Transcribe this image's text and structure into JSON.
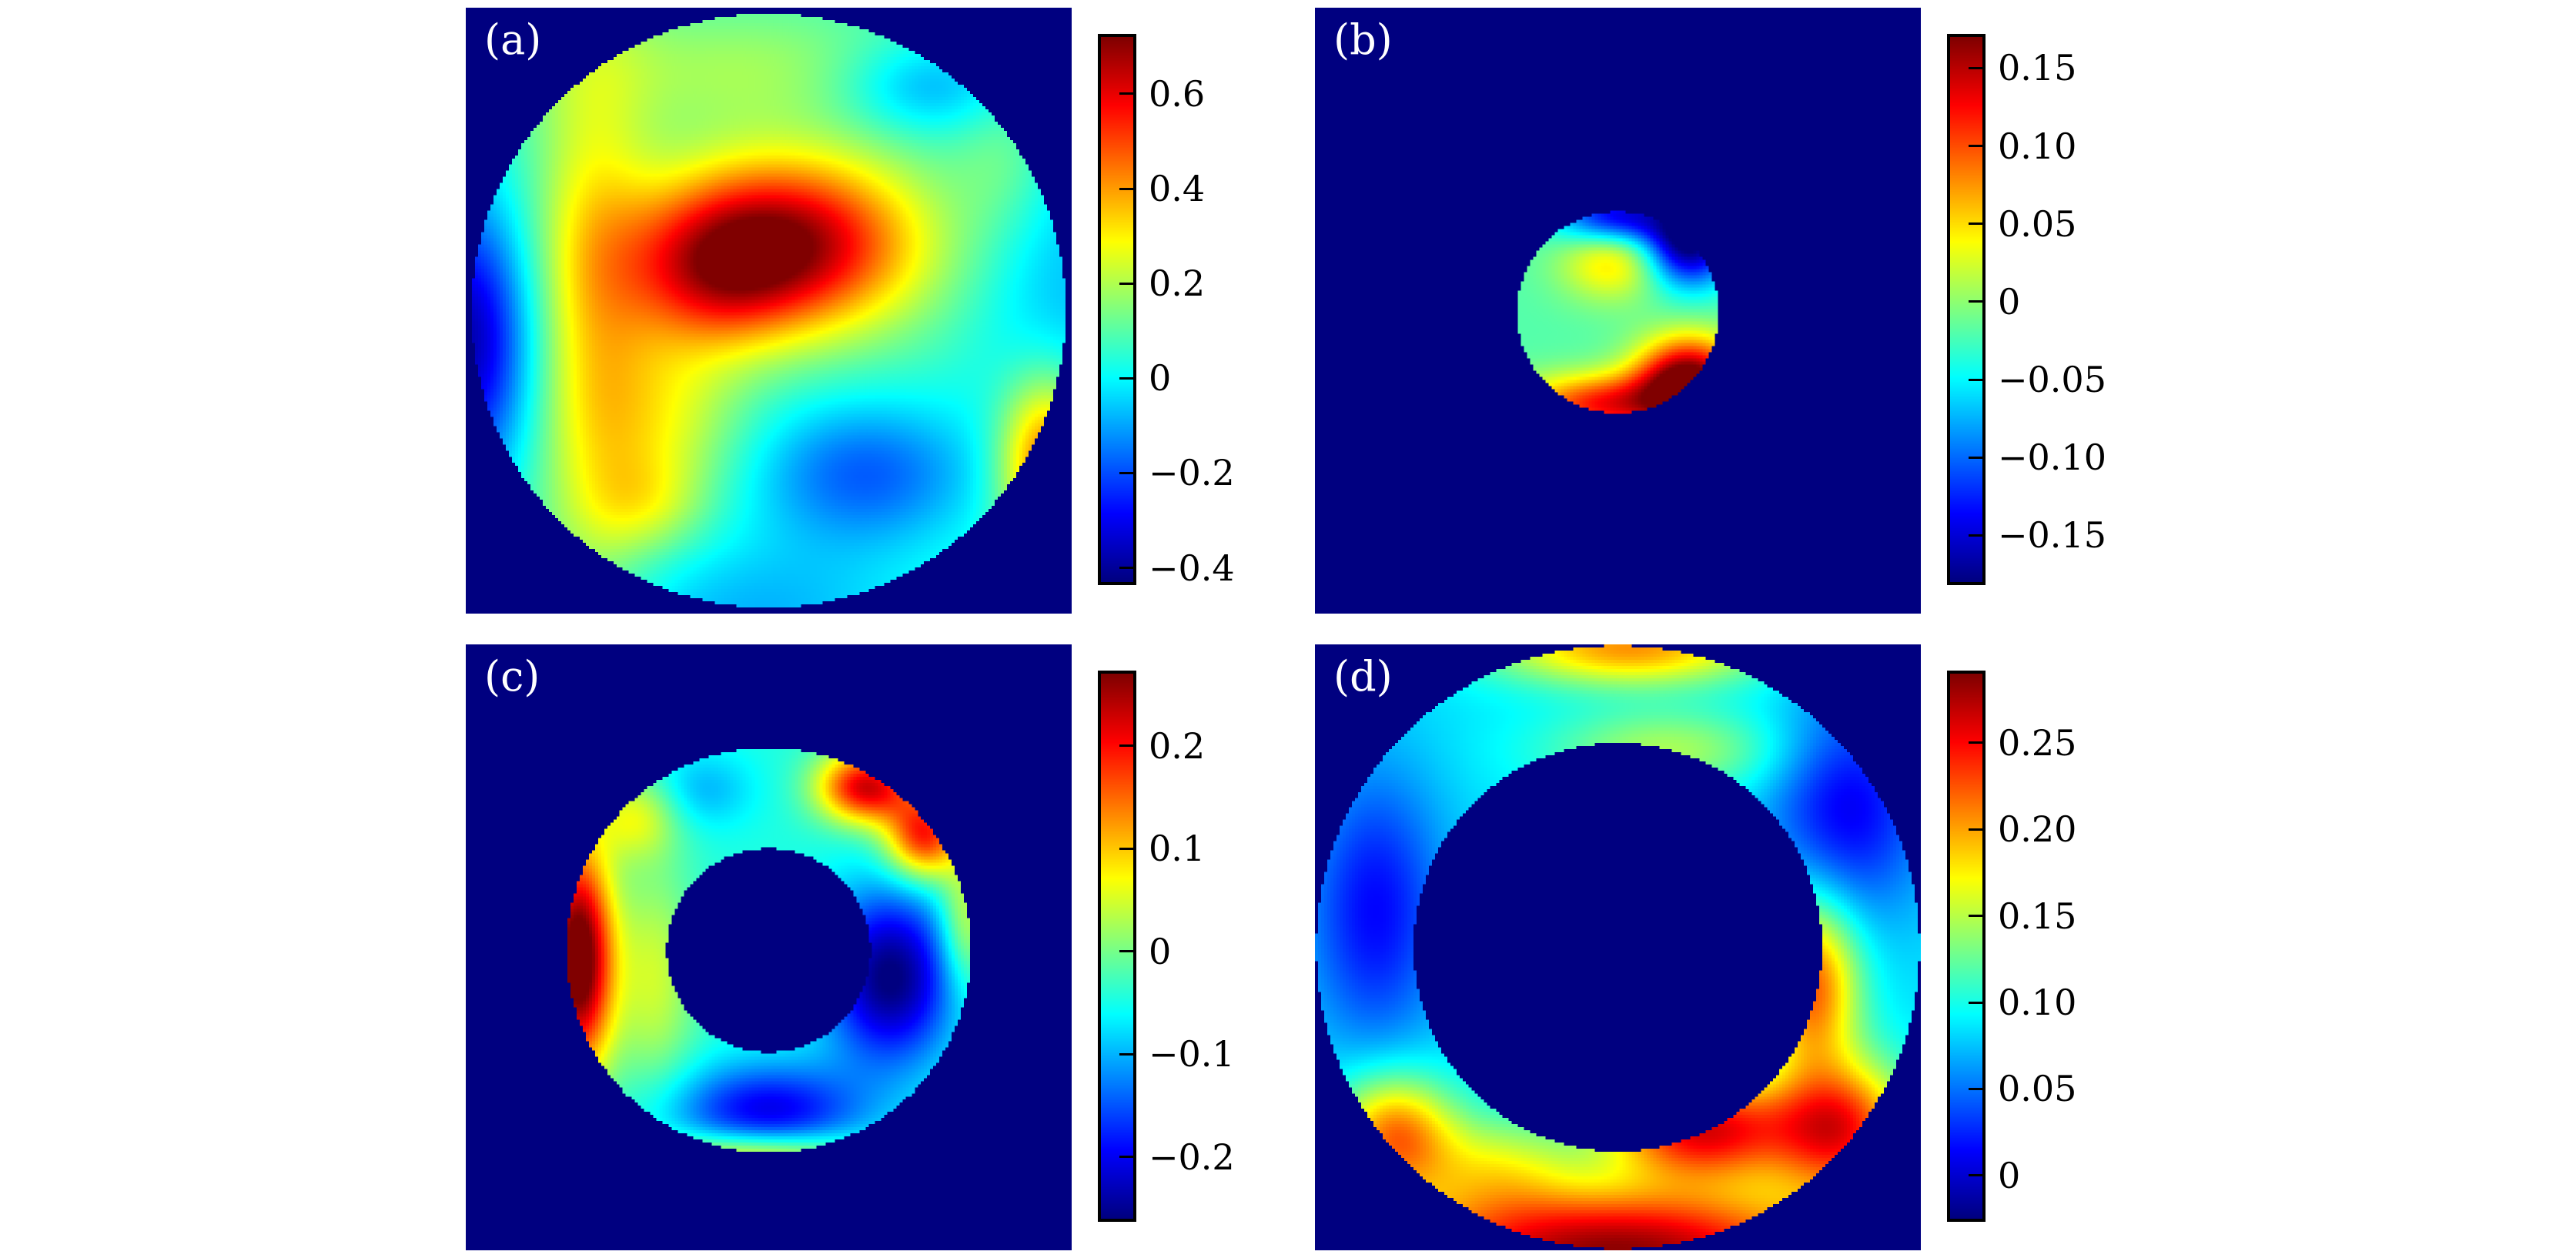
{
  "figure": {
    "background_color": "#ffffff",
    "data_background_color": "#00007f",
    "grid": {
      "rows": 2,
      "cols": 2
    },
    "blob_format": "[u, v, sigma_u, sigma_v, amplitude] in panel-fraction coordinates"
  },
  "chart_data": {
    "type": "heatmap",
    "colormap": "jet",
    "legend_position": "right-colorbar-per-panel",
    "panels": [
      {
        "id": "a",
        "label": "(a)",
        "shape": "disk",
        "mask": {
          "cx": 0.5,
          "cy": 0.5,
          "r_outer": 0.49,
          "r_inner": 0
        },
        "value_range": {
          "vmin": -0.43,
          "vmax": 0.72
        },
        "colorbar_ticks": [
          {
            "value": 0.6,
            "label": "0.6"
          },
          {
            "value": 0.4,
            "label": "0.4"
          },
          {
            "value": 0.2,
            "label": "0.2"
          },
          {
            "value": 0,
            "label": "0"
          },
          {
            "value": -0.2,
            "label": "−0.2"
          },
          {
            "value": -0.4,
            "label": "−0.4"
          }
        ],
        "field": {
          "base": 0.06,
          "gaussian_blobs": [
            [
              0.525,
              0.39,
              0.155,
              0.1,
              0.64
            ],
            [
              0.4,
              0.445,
              0.1,
              0.085,
              0.26
            ],
            [
              0.21,
              0.5,
              0.07,
              0.33,
              0.24
            ],
            [
              0.33,
              0.67,
              0.09,
              0.1,
              0.18
            ],
            [
              0.3,
              0.82,
              0.07,
              0.06,
              0.14
            ],
            [
              0.45,
              0.1,
              0.22,
              0.075,
              0.12
            ],
            [
              0.96,
              0.75,
              0.055,
              0.1,
              0.46
            ],
            [
              0.89,
              0.25,
              0.06,
              0.09,
              0.09
            ],
            [
              0.0,
              0.55,
              0.075,
              0.16,
              -0.44
            ],
            [
              0.66,
              0.77,
              0.13,
              0.085,
              -0.24
            ],
            [
              0.76,
              0.13,
              0.1,
              0.055,
              -0.17
            ],
            [
              0.99,
              0.48,
              0.1,
              0.22,
              -0.13
            ],
            [
              0.48,
              1.0,
              0.18,
              0.09,
              -0.14
            ]
          ]
        }
      },
      {
        "id": "b",
        "label": "(b)",
        "shape": "disk",
        "mask": {
          "cx": 0.5,
          "cy": 0.503,
          "r_outer": 0.166,
          "r_inner": 0
        },
        "value_range": {
          "vmin": -0.18,
          "vmax": 0.17
        },
        "colorbar_ticks": [
          {
            "value": 0.15,
            "label": "0.15"
          },
          {
            "value": 0.1,
            "label": "0.10"
          },
          {
            "value": 0.05,
            "label": "0.05"
          },
          {
            "value": 0,
            "label": "0"
          },
          {
            "value": -0.05,
            "label": "−0.05"
          },
          {
            "value": -0.1,
            "label": "−0.10"
          },
          {
            "value": -0.15,
            "label": "−0.15"
          }
        ],
        "field": {
          "base": -0.02,
          "gaussian_blobs": [
            [
              0.5,
              0.345,
              0.07,
              0.032,
              -0.13
            ],
            [
              0.617,
              0.387,
              0.05,
              0.05,
              -0.17
            ],
            [
              0.617,
              0.617,
              0.06,
              0.05,
              0.21
            ],
            [
              0.48,
              0.655,
              0.1,
              0.035,
              0.14
            ],
            [
              0.49,
              0.42,
              0.06,
              0.045,
              0.07
            ]
          ]
        }
      },
      {
        "id": "c",
        "label": "(c)",
        "shape": "annulus",
        "mask": {
          "cx": 0.5,
          "cy": 0.505,
          "r_outer": 0.334,
          "r_inner": 0.168
        },
        "value_range": {
          "vmin": -0.26,
          "vmax": 0.27
        },
        "colorbar_ticks": [
          {
            "value": 0.2,
            "label": "0.2"
          },
          {
            "value": 0.1,
            "label": "0.1"
          },
          {
            "value": 0,
            "label": "0"
          },
          {
            "value": -0.1,
            "label": "−0.1"
          },
          {
            "value": -0.2,
            "label": "−0.2"
          }
        ],
        "field": {
          "base": -0.045,
          "gaussian_blobs": [
            [
              0.185,
              0.52,
              0.04,
              0.13,
              0.36
            ],
            [
              0.66,
              0.235,
              0.055,
              0.042,
              0.27
            ],
            [
              0.757,
              0.315,
              0.045,
              0.05,
              0.24
            ],
            [
              0.825,
              0.46,
              0.03,
              0.08,
              0.1
            ],
            [
              0.28,
              0.285,
              0.05,
              0.05,
              0.1
            ],
            [
              0.7,
              0.55,
              0.075,
              0.1,
              -0.22
            ],
            [
              0.5,
              0.77,
              0.11,
              0.055,
              -0.16
            ],
            [
              0.39,
              0.24,
              0.06,
              0.045,
              -0.055
            ],
            [
              0.31,
              0.55,
              0.05,
              0.13,
              0.09
            ],
            [
              0.48,
              0.845,
              0.13,
              0.028,
              0.15
            ]
          ]
        }
      },
      {
        "id": "d",
        "label": "(d)",
        "shape": "annulus",
        "mask": {
          "cx": 0.5,
          "cy": 0.5,
          "r_outer": 0.498,
          "r_inner": 0.337
        },
        "value_range": {
          "vmin": -0.025,
          "vmax": 0.29
        },
        "colorbar_ticks": [
          {
            "value": 0.25,
            "label": "0.25"
          },
          {
            "value": 0.2,
            "label": "0.20"
          },
          {
            "value": 0.15,
            "label": "0.15"
          },
          {
            "value": 0.1,
            "label": "0.10"
          },
          {
            "value": 0.05,
            "label": "0.05"
          },
          {
            "value": 0,
            "label": "0"
          }
        ],
        "field": {
          "base": 0.085,
          "gaussian_blobs": [
            [
              0.5,
              1.0,
              0.28,
              0.075,
              0.2
            ],
            [
              0.13,
              0.81,
              0.07,
              0.07,
              0.13
            ],
            [
              0.87,
              0.8,
              0.08,
              0.08,
              0.15
            ],
            [
              0.64,
              0.8,
              0.11,
              0.06,
              0.17
            ],
            [
              0.82,
              0.56,
              0.055,
              0.1,
              0.14
            ],
            [
              0.88,
              0.27,
              0.09,
              0.13,
              -0.075
            ],
            [
              0.1,
              0.44,
              0.08,
              0.16,
              -0.07
            ],
            [
              0.52,
              0.005,
              0.16,
              0.045,
              0.12
            ],
            [
              0.58,
              0.175,
              0.14,
              0.05,
              0.06
            ],
            [
              0.3,
              0.86,
              0.09,
              0.06,
              0.06
            ]
          ]
        }
      }
    ]
  }
}
